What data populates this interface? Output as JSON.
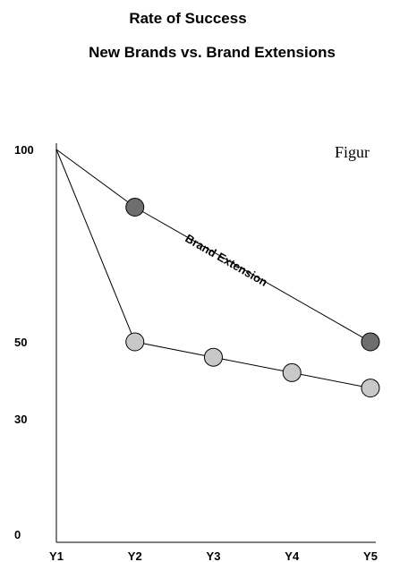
{
  "chart_data": {
    "type": "line",
    "title_line1": "Rate of Success",
    "title_line2": "New Brands vs. Brand Extensions",
    "figure_label": "Figur",
    "categories": [
      "Y1",
      "Y2",
      "Y3",
      "Y4",
      "Y5"
    ],
    "y_ticks": [
      "100",
      "50",
      "30",
      "0"
    ],
    "ylim": [
      0,
      100
    ],
    "series": [
      {
        "name": "Brand Extension",
        "points": [
          {
            "x": "Y1",
            "y": 100,
            "marker": false
          },
          {
            "x": "Y2",
            "y": 85,
            "marker": true
          },
          {
            "x": "Y5",
            "y": 50,
            "marker": true
          }
        ],
        "marker_color": "#6e6e6e"
      },
      {
        "name": "",
        "points": [
          {
            "x": "Y1",
            "y": 100,
            "marker": false
          },
          {
            "x": "Y2",
            "y": 50,
            "marker": true
          },
          {
            "x": "Y3",
            "y": 46,
            "marker": true
          },
          {
            "x": "Y4",
            "y": 42,
            "marker": true
          },
          {
            "x": "Y5",
            "y": 38,
            "marker": true
          }
        ],
        "marker_color": "#c8c8c8"
      }
    ],
    "annotation": "Brand Extension",
    "grid": false
  }
}
